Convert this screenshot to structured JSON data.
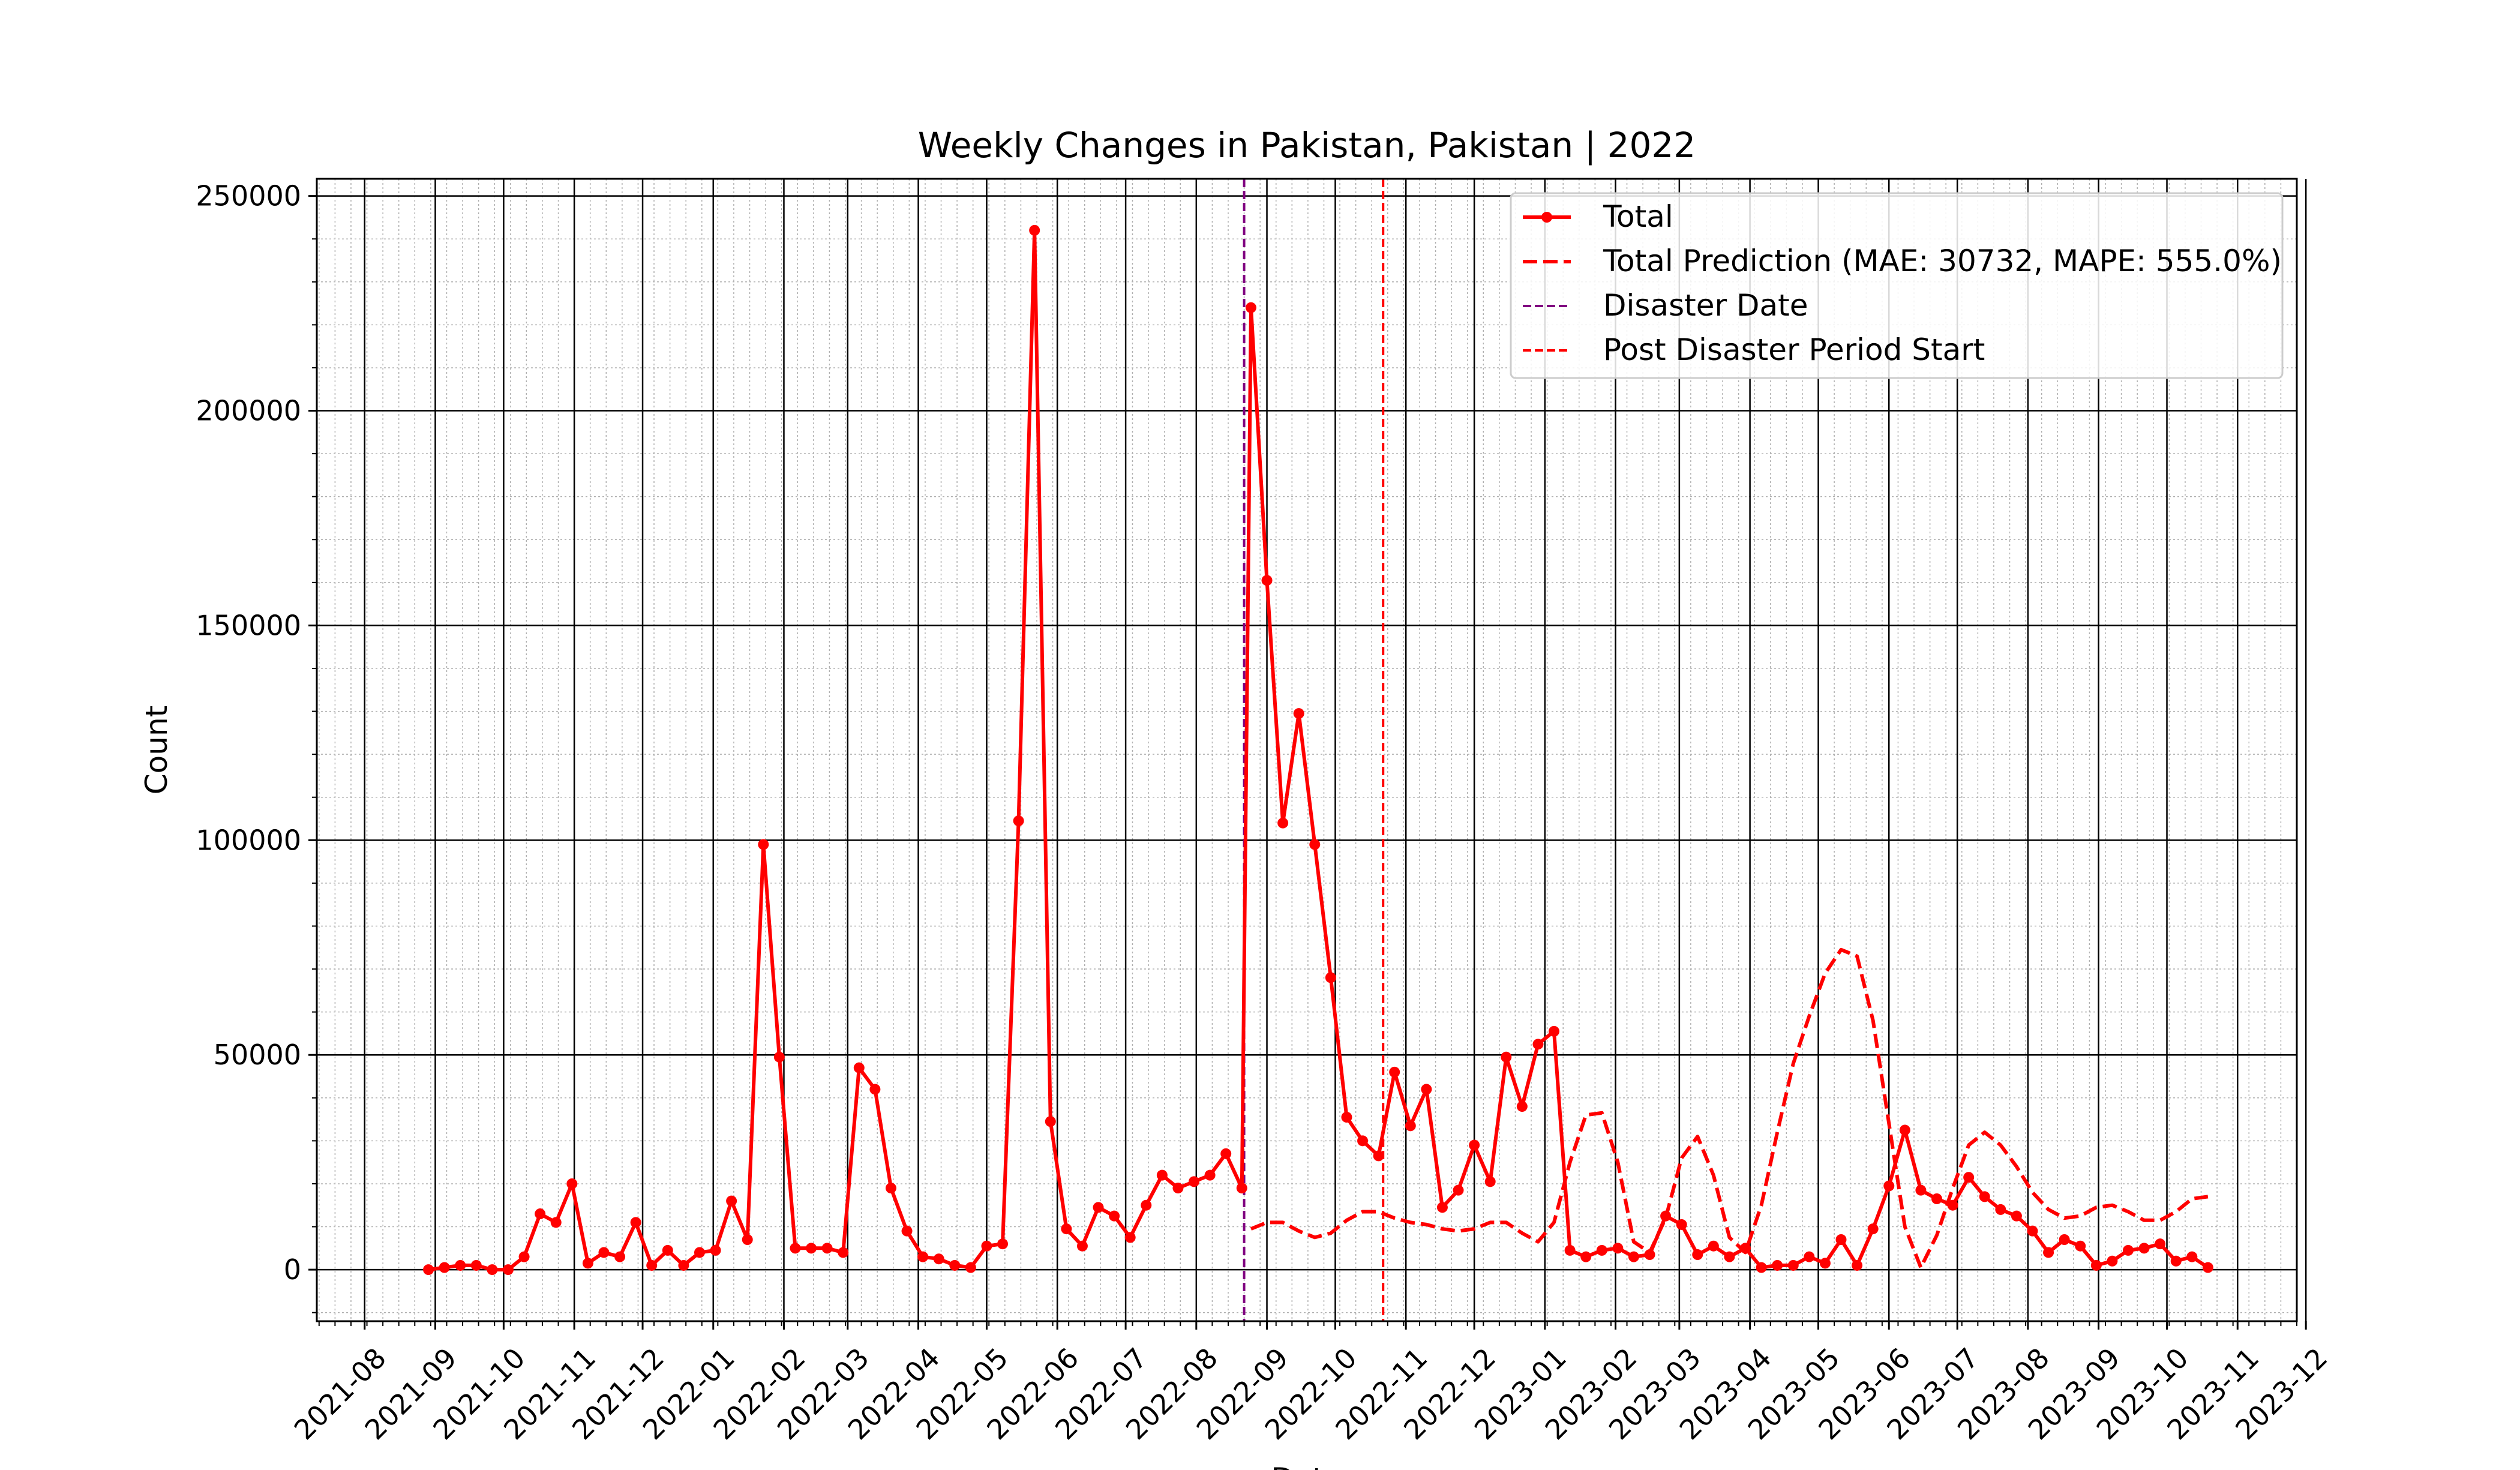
{
  "chart_data": {
    "type": "line",
    "title": "Weekly Changes in Pakistan, Pakistan | 2022",
    "xlabel": "Date",
    "ylabel": "Count",
    "xlim": [
      "2021-07-11",
      "2023-11-27"
    ],
    "ylim": [
      -12000,
      254000
    ],
    "grid": {
      "major": true,
      "minor": true
    },
    "legend_position": "top-right",
    "x_ticks": [
      "2021-08-01",
      "2021-09-01",
      "2021-10-01",
      "2021-11-01",
      "2021-12-01",
      "2022-01-01",
      "2022-02-01",
      "2022-03-01",
      "2022-04-01",
      "2022-05-01",
      "2022-06-01",
      "2022-07-01",
      "2022-08-01",
      "2022-09-01",
      "2022-10-01",
      "2022-11-01",
      "2022-12-01",
      "2023-01-01",
      "2023-02-01",
      "2023-03-01",
      "2023-04-01",
      "2023-05-01",
      "2023-06-01",
      "2023-07-01",
      "2023-08-01",
      "2023-09-01",
      "2023-10-01",
      "2023-11-01",
      "2023-12-01"
    ],
    "x_tick_labels": [
      "2021-08",
      "2021-09",
      "2021-10",
      "2021-11",
      "2021-12",
      "2022-01",
      "2022-02",
      "2022-03",
      "2022-04",
      "2022-05",
      "2022-06",
      "2022-07",
      "2022-08",
      "2022-09",
      "2022-10",
      "2022-11",
      "2022-12",
      "2023-01",
      "2023-02",
      "2023-03",
      "2023-04",
      "2023-05",
      "2023-06",
      "2023-07",
      "2023-08",
      "2023-09",
      "2023-10",
      "2023-11",
      "2023-12"
    ],
    "y_ticks": [
      0,
      50000,
      100000,
      150000,
      200000,
      250000
    ],
    "y_tick_labels": [
      "0",
      "50000",
      "100000",
      "150000",
      "200000",
      "250000"
    ],
    "vlines": [
      {
        "name": "Disaster Date",
        "date": "2022-08-22",
        "color": "#800080"
      },
      {
        "name": "Post Disaster Period Start",
        "date": "2022-10-22",
        "color": "#ff0000"
      }
    ],
    "series": [
      {
        "name": "Total",
        "color": "#ff0000",
        "style": "solid-markers",
        "points": [
          [
            "2021-08-29",
            0
          ],
          [
            "2021-09-05",
            500
          ],
          [
            "2021-09-12",
            1000
          ],
          [
            "2021-09-19",
            1000
          ],
          [
            "2021-09-26",
            0
          ],
          [
            "2021-10-03",
            0
          ],
          [
            "2021-10-10",
            3000
          ],
          [
            "2021-10-17",
            13000
          ],
          [
            "2021-10-24",
            11000
          ],
          [
            "2021-10-31",
            20000
          ],
          [
            "2021-11-07",
            1500
          ],
          [
            "2021-11-14",
            4000
          ],
          [
            "2021-11-21",
            3000
          ],
          [
            "2021-11-28",
            11000
          ],
          [
            "2021-12-05",
            1000
          ],
          [
            "2021-12-12",
            4500
          ],
          [
            "2021-12-19",
            1000
          ],
          [
            "2021-12-26",
            4000
          ],
          [
            "2022-01-02",
            4500
          ],
          [
            "2022-01-09",
            16000
          ],
          [
            "2022-01-16",
            7000
          ],
          [
            "2022-01-23",
            99000
          ],
          [
            "2022-01-30",
            49500
          ],
          [
            "2022-02-06",
            5000
          ],
          [
            "2022-02-13",
            5000
          ],
          [
            "2022-02-20",
            5000
          ],
          [
            "2022-02-27",
            4000
          ],
          [
            "2022-03-06",
            47000
          ],
          [
            "2022-03-13",
            42000
          ],
          [
            "2022-03-20",
            19000
          ],
          [
            "2022-03-27",
            9000
          ],
          [
            "2022-04-03",
            3000
          ],
          [
            "2022-04-10",
            2500
          ],
          [
            "2022-04-17",
            1000
          ],
          [
            "2022-04-24",
            500
          ],
          [
            "2022-05-01",
            5500
          ],
          [
            "2022-05-08",
            6000
          ],
          [
            "2022-05-15",
            104500
          ],
          [
            "2022-05-22",
            242000
          ],
          [
            "2022-05-29",
            34500
          ],
          [
            "2022-06-05",
            9500
          ],
          [
            "2022-06-12",
            5500
          ],
          [
            "2022-06-19",
            14500
          ],
          [
            "2022-06-26",
            12500
          ],
          [
            "2022-07-03",
            7500
          ],
          [
            "2022-07-10",
            15000
          ],
          [
            "2022-07-17",
            22000
          ],
          [
            "2022-07-24",
            19000
          ],
          [
            "2022-07-31",
            20500
          ],
          [
            "2022-08-07",
            22000
          ],
          [
            "2022-08-14",
            27000
          ],
          [
            "2022-08-21",
            19000
          ],
          [
            "2022-08-25",
            224000
          ],
          [
            "2022-09-01",
            160500
          ],
          [
            "2022-09-08",
            104000
          ],
          [
            "2022-09-15",
            129500
          ],
          [
            "2022-09-22",
            99000
          ],
          [
            "2022-09-29",
            68000
          ],
          [
            "2022-10-06",
            35500
          ],
          [
            "2022-10-13",
            30000
          ],
          [
            "2022-10-20",
            26500
          ],
          [
            "2022-10-27",
            46000
          ],
          [
            "2022-11-03",
            33500
          ],
          [
            "2022-11-10",
            42000
          ],
          [
            "2022-11-17",
            14500
          ],
          [
            "2022-11-24",
            18500
          ],
          [
            "2022-12-01",
            29000
          ],
          [
            "2022-12-08",
            20500
          ],
          [
            "2022-12-15",
            49500
          ],
          [
            "2022-12-22",
            38000
          ],
          [
            "2022-12-29",
            52500
          ],
          [
            "2023-01-05",
            55500
          ],
          [
            "2023-01-12",
            4500
          ],
          [
            "2023-01-19",
            3000
          ],
          [
            "2023-01-26",
            4500
          ],
          [
            "2023-02-02",
            5000
          ],
          [
            "2023-02-09",
            3000
          ],
          [
            "2023-02-16",
            3500
          ],
          [
            "2023-02-23",
            12500
          ],
          [
            "2023-03-02",
            10500
          ],
          [
            "2023-03-09",
            3500
          ],
          [
            "2023-03-16",
            5500
          ],
          [
            "2023-03-23",
            3000
          ],
          [
            "2023-03-30",
            5000
          ],
          [
            "2023-04-06",
            500
          ],
          [
            "2023-04-13",
            1000
          ],
          [
            "2023-04-20",
            1000
          ],
          [
            "2023-04-27",
            3000
          ],
          [
            "2023-05-04",
            1500
          ],
          [
            "2023-05-11",
            7000
          ],
          [
            "2023-05-18",
            1000
          ],
          [
            "2023-05-25",
            9500
          ],
          [
            "2023-06-01",
            19500
          ],
          [
            "2023-06-08",
            32500
          ],
          [
            "2023-06-15",
            18500
          ],
          [
            "2023-06-22",
            16500
          ],
          [
            "2023-06-29",
            15000
          ],
          [
            "2023-07-06",
            21500
          ],
          [
            "2023-07-13",
            17000
          ],
          [
            "2023-07-20",
            14000
          ],
          [
            "2023-07-27",
            12500
          ],
          [
            "2023-08-03",
            9000
          ],
          [
            "2023-08-10",
            4000
          ],
          [
            "2023-08-17",
            7000
          ],
          [
            "2023-08-24",
            5500
          ],
          [
            "2023-08-31",
            1000
          ],
          [
            "2023-09-07",
            2000
          ],
          [
            "2023-09-14",
            4500
          ],
          [
            "2023-09-21",
            5000
          ],
          [
            "2023-09-28",
            6000
          ],
          [
            "2023-10-05",
            2000
          ],
          [
            "2023-10-12",
            3000
          ],
          [
            "2023-10-19",
            500
          ]
        ]
      },
      {
        "name": "Total Prediction (MAE: 30732, MAPE: 555.0%)",
        "color": "#ff0000",
        "style": "dashed",
        "points": [
          [
            "2022-08-25",
            9500
          ],
          [
            "2022-09-01",
            11000
          ],
          [
            "2022-09-08",
            11000
          ],
          [
            "2022-09-15",
            9000
          ],
          [
            "2022-09-22",
            7500
          ],
          [
            "2022-09-29",
            8500
          ],
          [
            "2022-10-06",
            11500
          ],
          [
            "2022-10-13",
            13500
          ],
          [
            "2022-10-20",
            13500
          ],
          [
            "2022-10-27",
            12000
          ],
          [
            "2022-11-03",
            11000
          ],
          [
            "2022-11-10",
            10500
          ],
          [
            "2022-11-17",
            9500
          ],
          [
            "2022-11-24",
            9000
          ],
          [
            "2022-12-01",
            9500
          ],
          [
            "2022-12-08",
            11000
          ],
          [
            "2022-12-15",
            11000
          ],
          [
            "2022-12-22",
            8500
          ],
          [
            "2022-12-29",
            6500
          ],
          [
            "2023-01-05",
            11000
          ],
          [
            "2023-01-12",
            25000
          ],
          [
            "2023-01-19",
            36000
          ],
          [
            "2023-01-26",
            36500
          ],
          [
            "2023-02-02",
            25000
          ],
          [
            "2023-02-09",
            6500
          ],
          [
            "2023-02-16",
            4000
          ],
          [
            "2023-02-23",
            12000
          ],
          [
            "2023-03-02",
            26000
          ],
          [
            "2023-03-09",
            31000
          ],
          [
            "2023-03-16",
            22000
          ],
          [
            "2023-03-23",
            7500
          ],
          [
            "2023-03-30",
            4000
          ],
          [
            "2023-04-06",
            15000
          ],
          [
            "2023-04-13",
            32000
          ],
          [
            "2023-04-20",
            48000
          ],
          [
            "2023-04-27",
            59000
          ],
          [
            "2023-05-04",
            69000
          ],
          [
            "2023-05-11",
            74500
          ],
          [
            "2023-05-18",
            73000
          ],
          [
            "2023-05-25",
            58000
          ],
          [
            "2023-06-01",
            34000
          ],
          [
            "2023-06-08",
            10000
          ],
          [
            "2023-06-15",
            500
          ],
          [
            "2023-06-22",
            8000
          ],
          [
            "2023-06-29",
            19000
          ],
          [
            "2023-07-06",
            29000
          ],
          [
            "2023-07-13",
            32000
          ],
          [
            "2023-07-20",
            29000
          ],
          [
            "2023-07-27",
            24000
          ],
          [
            "2023-08-03",
            18000
          ],
          [
            "2023-08-10",
            14000
          ],
          [
            "2023-08-17",
            12000
          ],
          [
            "2023-08-24",
            12500
          ],
          [
            "2023-08-31",
            14500
          ],
          [
            "2023-09-07",
            15000
          ],
          [
            "2023-09-14",
            13500
          ],
          [
            "2023-09-21",
            11500
          ],
          [
            "2023-09-28",
            11500
          ],
          [
            "2023-10-05",
            13500
          ],
          [
            "2023-10-12",
            16500
          ],
          [
            "2023-10-19",
            17000
          ]
        ]
      }
    ]
  }
}
